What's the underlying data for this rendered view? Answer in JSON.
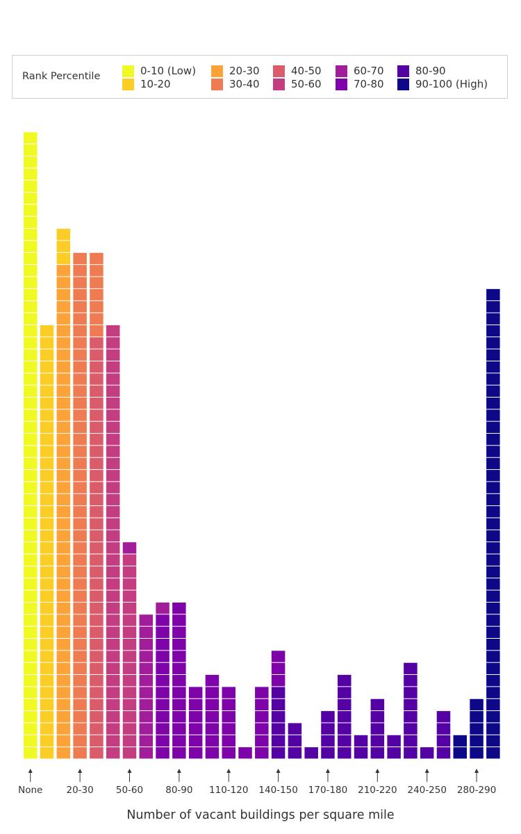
{
  "chart_data": {
    "type": "bar",
    "style": "stacked unit squares (one square per unit)",
    "xlabel": "Number of vacant buildings per square mile",
    "ylabel": "",
    "legend": {
      "title": "Rank Percentile",
      "placement": "top",
      "items": [
        {
          "label": "0-10 (Low)",
          "color": "#f0f921"
        },
        {
          "label": "10-20",
          "color": "#fccd25"
        },
        {
          "label": "20-30",
          "color": "#fba238"
        },
        {
          "label": "30-40",
          "color": "#ee7b51"
        },
        {
          "label": "40-50",
          "color": "#da5b69"
        },
        {
          "label": "50-60",
          "color": "#c33d80"
        },
        {
          "label": "60-70",
          "color": "#a21d9a"
        },
        {
          "label": "70-80",
          "color": "#7e03a8"
        },
        {
          "label": "80-90",
          "color": "#5402a3"
        },
        {
          "label": "90-100 (High)",
          "color": "#0d0887"
        }
      ]
    },
    "tick_labels": [
      "None",
      "20-30",
      "50-60",
      "80-90",
      "110-120",
      "140-150",
      "170-180",
      "210-220",
      "240-250",
      "280-290"
    ],
    "tick_bins": [
      0,
      3,
      6,
      9,
      12,
      15,
      18,
      21,
      24,
      27
    ],
    "bins": [
      {
        "stack": [
          [
            0,
            52
          ]
        ]
      },
      {
        "stack": [
          [
            1,
            36
          ]
        ]
      },
      {
        "stack": [
          [
            2,
            41
          ],
          [
            1,
            3
          ]
        ]
      },
      {
        "stack": [
          [
            3,
            42
          ]
        ]
      },
      {
        "stack": [
          [
            4,
            35
          ],
          [
            3,
            7
          ]
        ]
      },
      {
        "stack": [
          [
            5,
            36
          ]
        ]
      },
      {
        "stack": [
          [
            5,
            17
          ],
          [
            6,
            1
          ]
        ]
      },
      {
        "stack": [
          [
            6,
            12
          ]
        ]
      },
      {
        "stack": [
          [
            7,
            12
          ],
          [
            6,
            1
          ]
        ]
      },
      {
        "stack": [
          [
            7,
            13
          ]
        ]
      },
      {
        "stack": [
          [
            7,
            6
          ]
        ]
      },
      {
        "stack": [
          [
            7,
            7
          ]
        ]
      },
      {
        "stack": [
          [
            7,
            6
          ]
        ]
      },
      {
        "stack": [
          [
            7,
            1
          ]
        ]
      },
      {
        "stack": [
          [
            7,
            6
          ]
        ]
      },
      {
        "stack": [
          [
            8,
            6
          ],
          [
            7,
            3
          ]
        ]
      },
      {
        "stack": [
          [
            8,
            3
          ]
        ]
      },
      {
        "stack": [
          [
            8,
            1
          ]
        ]
      },
      {
        "stack": [
          [
            8,
            4
          ]
        ]
      },
      {
        "stack": [
          [
            8,
            7
          ]
        ]
      },
      {
        "stack": [
          [
            8,
            2
          ]
        ]
      },
      {
        "stack": [
          [
            8,
            5
          ]
        ]
      },
      {
        "stack": [
          [
            8,
            2
          ]
        ]
      },
      {
        "stack": [
          [
            8,
            8
          ]
        ]
      },
      {
        "stack": [
          [
            8,
            1
          ]
        ]
      },
      {
        "stack": [
          [
            8,
            4
          ]
        ]
      },
      {
        "stack": [
          [
            9,
            2
          ]
        ]
      },
      {
        "stack": [
          [
            9,
            5
          ]
        ]
      },
      {
        "stack": [
          [
            9,
            39
          ]
        ]
      }
    ],
    "grid": false
  }
}
